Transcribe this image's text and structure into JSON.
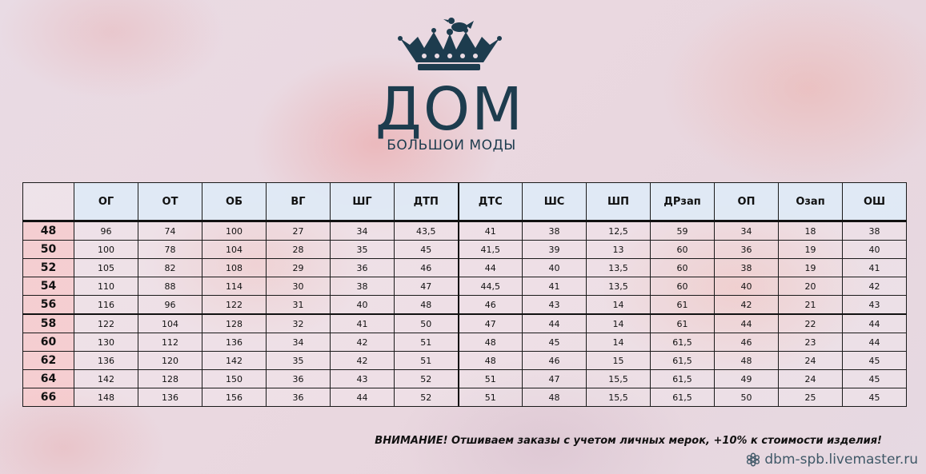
{
  "brand": {
    "name": "ДОМ",
    "subtitle": "БОЛЬШОИ МОДЫ"
  },
  "colors": {
    "brand": "#1d3c4e",
    "header_bg": "#deeaf6",
    "size_col_bg": "#f9c8c8"
  },
  "table": {
    "headers": [
      "ОГ",
      "ОТ",
      "ОБ",
      "ВГ",
      "ШГ",
      "ДТП",
      "ДТС",
      "ШС",
      "ШП",
      "ДРзап",
      "ОП",
      "Озап",
      "ОШ"
    ],
    "rows": [
      {
        "size": "48",
        "values": [
          "96",
          "74",
          "100",
          "27",
          "34",
          "43,5",
          "41",
          "38",
          "12,5",
          "59",
          "34",
          "18",
          "38"
        ]
      },
      {
        "size": "50",
        "values": [
          "100",
          "78",
          "104",
          "28",
          "35",
          "45",
          "41,5",
          "39",
          "13",
          "60",
          "36",
          "19",
          "40"
        ]
      },
      {
        "size": "52",
        "values": [
          "105",
          "82",
          "108",
          "29",
          "36",
          "46",
          "44",
          "40",
          "13,5",
          "60",
          "38",
          "19",
          "41"
        ]
      },
      {
        "size": "54",
        "values": [
          "110",
          "88",
          "114",
          "30",
          "38",
          "47",
          "44,5",
          "41",
          "13,5",
          "60",
          "40",
          "20",
          "42"
        ]
      },
      {
        "size": "56",
        "values": [
          "116",
          "96",
          "122",
          "31",
          "40",
          "48",
          "46",
          "43",
          "14",
          "61",
          "42",
          "21",
          "43"
        ]
      },
      {
        "size": "58",
        "values": [
          "122",
          "104",
          "128",
          "32",
          "41",
          "50",
          "47",
          "44",
          "14",
          "61",
          "44",
          "22",
          "44"
        ]
      },
      {
        "size": "60",
        "values": [
          "130",
          "112",
          "136",
          "34",
          "42",
          "51",
          "48",
          "45",
          "14",
          "61,5",
          "46",
          "23",
          "44"
        ]
      },
      {
        "size": "62",
        "values": [
          "136",
          "120",
          "142",
          "35",
          "42",
          "51",
          "48",
          "46",
          "15",
          "61,5",
          "48",
          "24",
          "45"
        ]
      },
      {
        "size": "64",
        "values": [
          "142",
          "128",
          "150",
          "36",
          "43",
          "52",
          "51",
          "47",
          "15,5",
          "61,5",
          "49",
          "24",
          "45"
        ]
      },
      {
        "size": "66",
        "values": [
          "148",
          "136",
          "156",
          "36",
          "44",
          "52",
          "51",
          "48",
          "15,5",
          "61,5",
          "50",
          "25",
          "45"
        ]
      }
    ]
  },
  "notice": "ВНИМАНИЕ! Отшиваем заказы с учетом личных мерок, +10% к стоимости изделия!",
  "watermark": {
    "text": "dbm-spb.livemaster.ru",
    "icon": "livemaster-flower-icon"
  }
}
